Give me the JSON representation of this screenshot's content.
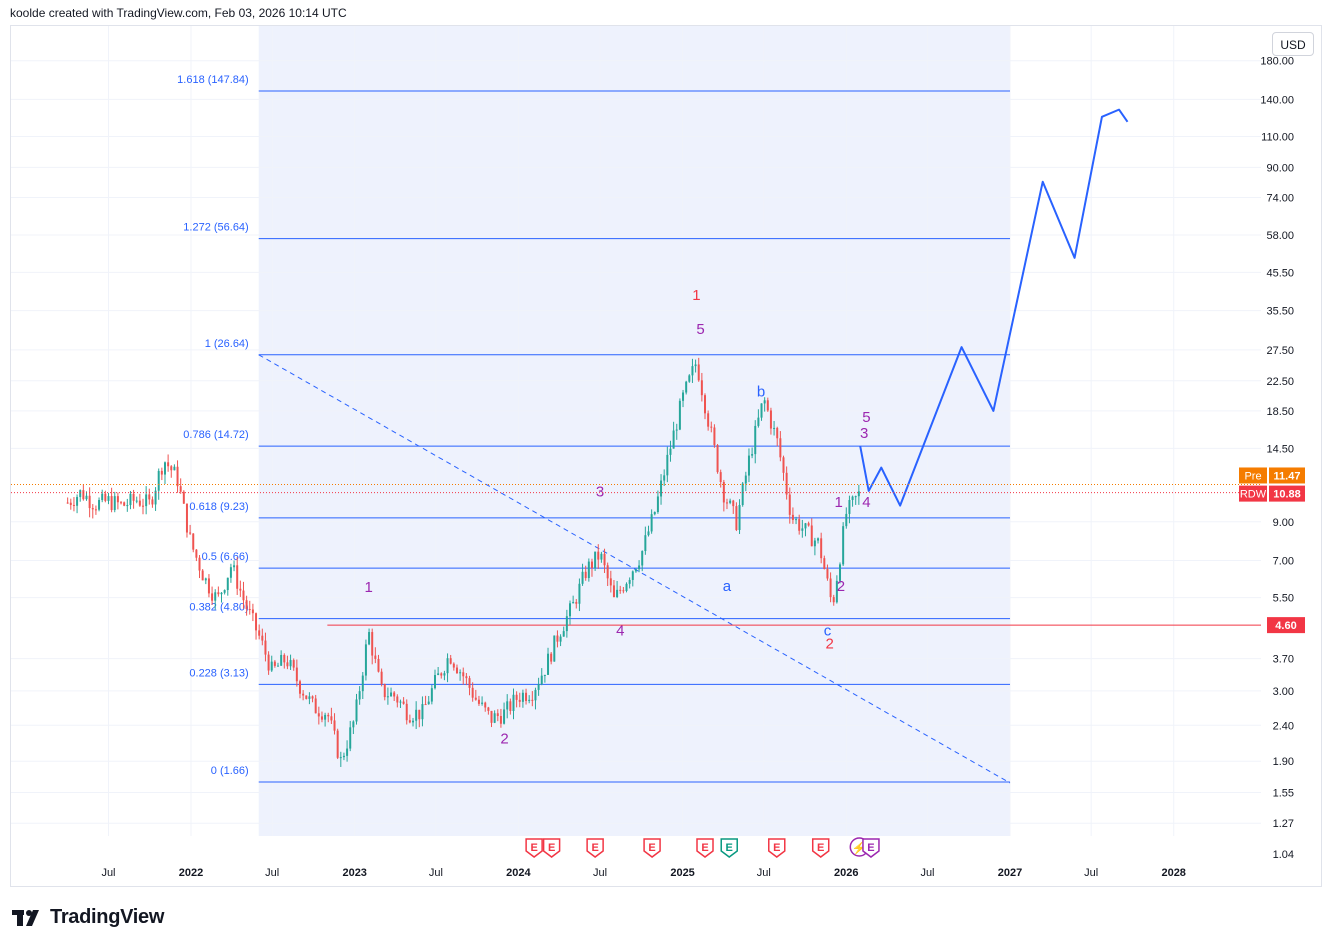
{
  "header": {
    "credit": "koolde created with TradingView.com, Feb 03, 2026 10:14 UTC"
  },
  "currency_button": "USD",
  "brand": {
    "name": "TradingView"
  },
  "colors": {
    "fib_line": "#2962ff",
    "fib_bg": "#eef2fd",
    "bull": "#26a69a",
    "bear": "#ef5350",
    "wave_purple": "#9c27b0",
    "wave_red": "#f23645",
    "wave_blue": "#2962ff",
    "support": "#f23645",
    "pre_badge": "#f57c00",
    "rdw_badge": "#f23645"
  },
  "chart_data": {
    "type": "line",
    "title": "",
    "xlabel": "",
    "ylabel": "",
    "y_scale": "log",
    "ylim": [
      0.95,
      180
    ],
    "x_axis_ticks": [
      {
        "label": "Jul",
        "x": "2021-07-01"
      },
      {
        "label": "2022",
        "x": "2022-01-01"
      },
      {
        "label": "Jul",
        "x": "2022-07-01"
      },
      {
        "label": "2023",
        "x": "2023-01-01"
      },
      {
        "label": "Jul",
        "x": "2023-07-01"
      },
      {
        "label": "2024",
        "x": "2024-01-01"
      },
      {
        "label": "Jul",
        "x": "2024-07-01"
      },
      {
        "label": "2025",
        "x": "2025-01-01"
      },
      {
        "label": "Jul",
        "x": "2025-07-01"
      },
      {
        "label": "2026",
        "x": "2026-01-01"
      },
      {
        "label": "Jul",
        "x": "2026-07-01"
      },
      {
        "label": "2027",
        "x": "2027-01-01"
      },
      {
        "label": "Jul",
        "x": "2027-07-01"
      },
      {
        "label": "2028",
        "x": "2028-01-01"
      }
    ],
    "y_axis_ticks": [
      "180.00",
      "140.00",
      "110.00",
      "90.00",
      "74.00",
      "58.00",
      "45.50",
      "35.50",
      "27.50",
      "22.50",
      "18.50",
      "14.50",
      "9.00",
      "7.00",
      "5.50",
      "3.70",
      "3.00",
      "2.40",
      "1.90",
      "1.55",
      "1.27",
      "1.04"
    ],
    "fibonacci": {
      "x_start": "2022-06-01",
      "x_end": "2027-01-01",
      "levels": [
        {
          "ratio": "1.618",
          "price": 147.84,
          "label": "1.618 (147.84)"
        },
        {
          "ratio": "1.272",
          "price": 56.64,
          "label": "1.272 (56.64)"
        },
        {
          "ratio": "1",
          "price": 26.64,
          "label": "1 (26.64)"
        },
        {
          "ratio": "0.786",
          "price": 14.72,
          "label": "0.786 (14.72)"
        },
        {
          "ratio": "0.618",
          "price": 9.23,
          "label": "0.618 (9.23)"
        },
        {
          "ratio": "0.5",
          "price": 6.66,
          "label": "0.5 (6.66)"
        },
        {
          "ratio": "0.382",
          "price": 4.8,
          "label": "0.382 (4.80)"
        },
        {
          "ratio": "0.228",
          "price": 3.13,
          "label": "0.228 (3.13)"
        },
        {
          "ratio": "0",
          "price": 1.66,
          "label": "0 (1.66)"
        }
      ]
    },
    "price_series": [
      {
        "x": "2021-04-01",
        "y": 10.2
      },
      {
        "x": "2021-05-01",
        "y": 10.9
      },
      {
        "x": "2021-06-01",
        "y": 10.1
      },
      {
        "x": "2021-07-01",
        "y": 10.3
      },
      {
        "x": "2021-08-01",
        "y": 10.0
      },
      {
        "x": "2021-09-01",
        "y": 10.4
      },
      {
        "x": "2021-10-01",
        "y": 10.1
      },
      {
        "x": "2021-11-01",
        "y": 13.5
      },
      {
        "x": "2021-12-01",
        "y": 12.0
      },
      {
        "x": "2022-01-01",
        "y": 7.8
      },
      {
        "x": "2022-02-01",
        "y": 6.2
      },
      {
        "x": "2022-03-01",
        "y": 5.4
      },
      {
        "x": "2022-04-01",
        "y": 6.8
      },
      {
        "x": "2022-05-01",
        "y": 5.3
      },
      {
        "x": "2022-06-01",
        "y": 4.3
      },
      {
        "x": "2022-07-01",
        "y": 3.4
      },
      {
        "x": "2022-08-01",
        "y": 3.7
      },
      {
        "x": "2022-09-01",
        "y": 3.1
      },
      {
        "x": "2022-10-01",
        "y": 2.7
      },
      {
        "x": "2022-11-01",
        "y": 2.6
      },
      {
        "x": "2022-12-01",
        "y": 1.9
      },
      {
        "x": "2023-01-01",
        "y": 2.5
      },
      {
        "x": "2023-02-01",
        "y": 4.4
      },
      {
        "x": "2023-03-01",
        "y": 3.0
      },
      {
        "x": "2023-04-01",
        "y": 2.9
      },
      {
        "x": "2023-05-01",
        "y": 2.6
      },
      {
        "x": "2023-06-01",
        "y": 2.6
      },
      {
        "x": "2023-07-01",
        "y": 3.2
      },
      {
        "x": "2023-08-01",
        "y": 3.8
      },
      {
        "x": "2023-09-01",
        "y": 3.3
      },
      {
        "x": "2023-10-01",
        "y": 2.8
      },
      {
        "x": "2023-11-01",
        "y": 2.5
      },
      {
        "x": "2023-12-01",
        "y": 2.6
      },
      {
        "x": "2024-01-01",
        "y": 2.9
      },
      {
        "x": "2024-02-01",
        "y": 3.0
      },
      {
        "x": "2024-03-01",
        "y": 3.5
      },
      {
        "x": "2024-04-01",
        "y": 4.4
      },
      {
        "x": "2024-05-01",
        "y": 5.2
      },
      {
        "x": "2024-06-01",
        "y": 6.6
      },
      {
        "x": "2024-07-01",
        "y": 7.3
      },
      {
        "x": "2024-08-01",
        "y": 5.4
      },
      {
        "x": "2024-09-01",
        "y": 6.3
      },
      {
        "x": "2024-10-01",
        "y": 7.3
      },
      {
        "x": "2024-11-01",
        "y": 9.7
      },
      {
        "x": "2024-12-01",
        "y": 14.0
      },
      {
        "x": "2025-01-01",
        "y": 20.0
      },
      {
        "x": "2025-02-01",
        "y": 25.5
      },
      {
        "x": "2025-03-01",
        "y": 17.0
      },
      {
        "x": "2025-04-01",
        "y": 11.0
      },
      {
        "x": "2025-05-01",
        "y": 9.0
      },
      {
        "x": "2025-06-01",
        "y": 14.0
      },
      {
        "x": "2025-07-01",
        "y": 20.0
      },
      {
        "x": "2025-08-01",
        "y": 15.0
      },
      {
        "x": "2025-09-01",
        "y": 9.3
      },
      {
        "x": "2025-10-01",
        "y": 8.5
      },
      {
        "x": "2025-11-01",
        "y": 7.8
      },
      {
        "x": "2025-12-01",
        "y": 5.2
      },
      {
        "x": "2026-01-01",
        "y": 9.5
      },
      {
        "x": "2026-02-01",
        "y": 10.88
      }
    ],
    "projection": [
      {
        "x": "2026-02-01",
        "y": 14.72
      },
      {
        "x": "2026-02-20",
        "y": 11.0
      },
      {
        "x": "2026-03-20",
        "y": 12.8
      },
      {
        "x": "2026-05-01",
        "y": 10.0
      },
      {
        "x": "2026-09-15",
        "y": 28.0
      },
      {
        "x": "2026-11-25",
        "y": 18.5
      },
      {
        "x": "2027-03-15",
        "y": 82.0
      },
      {
        "x": "2027-05-25",
        "y": 50.0
      },
      {
        "x": "2027-07-25",
        "y": 125.0
      },
      {
        "x": "2027-09-01",
        "y": 131.0
      },
      {
        "x": "2027-09-20",
        "y": 121.0
      }
    ],
    "trendline": {
      "from": {
        "x": "2022-06-01",
        "y": 26.64
      },
      "to": {
        "x": "2027-01-01",
        "y": 1.65
      }
    },
    "support_level": {
      "price": 4.6,
      "label": "4.60",
      "from_x": "2022-11-01"
    },
    "wave_labels": [
      {
        "text": "1",
        "x": "2023-02-01",
        "y": 5.7,
        "color": "purple"
      },
      {
        "text": "2",
        "x": "2023-12-01",
        "y": 2.13,
        "color": "purple"
      },
      {
        "text": "3",
        "x": "2024-07-01",
        "y": 10.6,
        "color": "purple"
      },
      {
        "text": "4",
        "x": "2024-08-15",
        "y": 4.3,
        "color": "purple"
      },
      {
        "text": "1",
        "x": "2025-02-01",
        "y": 38.0,
        "color": "red"
      },
      {
        "text": "5",
        "x": "2025-02-10",
        "y": 30.5,
        "color": "purple"
      },
      {
        "text": "b",
        "x": "2025-06-25",
        "y": 20.3,
        "color": "blue"
      },
      {
        "text": "a",
        "x": "2025-04-10",
        "y": 5.75,
        "color": "blue"
      },
      {
        "text": "c",
        "x": "2025-11-20",
        "y": 4.3,
        "color": "blue"
      },
      {
        "text": "2",
        "x": "2025-11-25",
        "y": 3.95,
        "color": "red"
      },
      {
        "text": "1",
        "x": "2025-12-15",
        "y": 9.9,
        "color": "purple"
      },
      {
        "text": "2",
        "x": "2025-12-20",
        "y": 5.75,
        "color": "purple"
      },
      {
        "text": "5",
        "x": "2026-02-15",
        "y": 17.2,
        "color": "purple"
      },
      {
        "text": "3",
        "x": "2026-02-10",
        "y": 15.5,
        "color": "purple"
      },
      {
        "text": "4",
        "x": "2026-02-15",
        "y": 9.9,
        "color": "purple"
      }
    ],
    "events": [
      {
        "x": "2024-02-05",
        "type": "E",
        "color": "red"
      },
      {
        "x": "2024-03-15",
        "type": "E",
        "color": "red"
      },
      {
        "x": "2024-06-20",
        "type": "E",
        "color": "red"
      },
      {
        "x": "2024-10-25",
        "type": "E",
        "color": "red"
      },
      {
        "x": "2025-02-20",
        "type": "E",
        "color": "red"
      },
      {
        "x": "2025-04-15",
        "type": "E",
        "color": "green"
      },
      {
        "x": "2025-07-30",
        "type": "E",
        "color": "red"
      },
      {
        "x": "2025-11-05",
        "type": "E",
        "color": "red"
      },
      {
        "x": "2026-01-30",
        "type": "dividend",
        "color": "purple"
      },
      {
        "x": "2026-02-25",
        "type": "E",
        "color": "purple"
      }
    ],
    "price_badges": [
      {
        "label": "Pre",
        "value": "11.47",
        "price": 11.47,
        "color": "orange"
      },
      {
        "label": "RDW",
        "value": "10.88",
        "price": 10.88,
        "color": "red"
      }
    ]
  }
}
